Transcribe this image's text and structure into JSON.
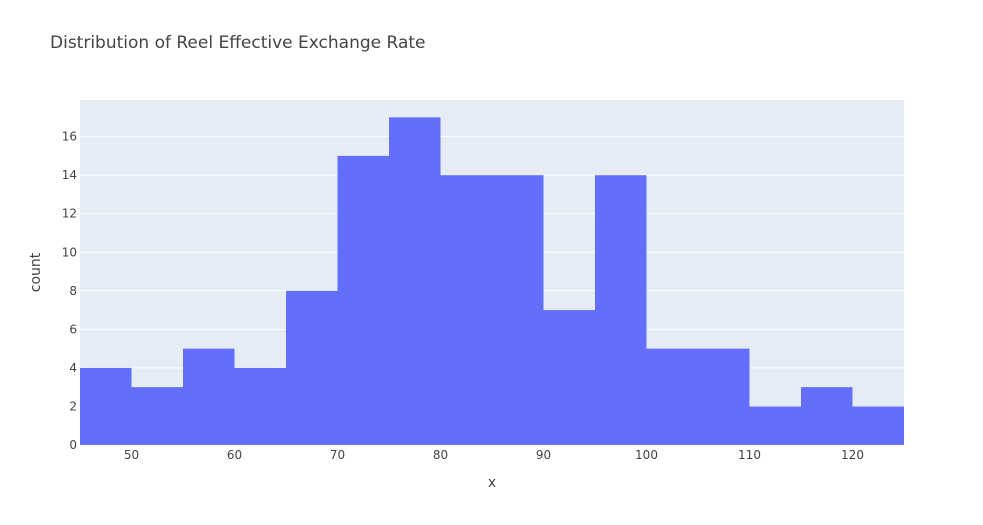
{
  "chart_data": {
    "type": "bar",
    "title": "Distribution of Reel Effective Exchange Rate",
    "xlabel": "x",
    "ylabel": "count",
    "bin_width": 5,
    "bins": [
      {
        "start": 45,
        "end": 50,
        "count": 4
      },
      {
        "start": 50,
        "end": 55,
        "count": 3
      },
      {
        "start": 55,
        "end": 60,
        "count": 5
      },
      {
        "start": 60,
        "end": 65,
        "count": 4
      },
      {
        "start": 65,
        "end": 70,
        "count": 8
      },
      {
        "start": 70,
        "end": 75,
        "count": 15
      },
      {
        "start": 75,
        "end": 80,
        "count": 17
      },
      {
        "start": 80,
        "end": 85,
        "count": 14
      },
      {
        "start": 85,
        "end": 90,
        "count": 14
      },
      {
        "start": 90,
        "end": 95,
        "count": 7
      },
      {
        "start": 95,
        "end": 100,
        "count": 14
      },
      {
        "start": 100,
        "end": 105,
        "count": 5
      },
      {
        "start": 105,
        "end": 110,
        "count": 5
      },
      {
        "start": 110,
        "end": 115,
        "count": 2
      },
      {
        "start": 115,
        "end": 120,
        "count": 3
      },
      {
        "start": 120,
        "end": 125,
        "count": 2
      }
    ],
    "xlim": [
      45,
      125
    ],
    "ylim": [
      0,
      17.9
    ],
    "x_ticks": [
      50,
      60,
      70,
      80,
      90,
      100,
      110,
      120
    ],
    "y_ticks": [
      0,
      2,
      4,
      6,
      8,
      10,
      12,
      14,
      16
    ],
    "grid": true,
    "colors": {
      "bar": "#636efa",
      "plot_background": "#e5ecf6",
      "grid": "#ffffff"
    }
  }
}
